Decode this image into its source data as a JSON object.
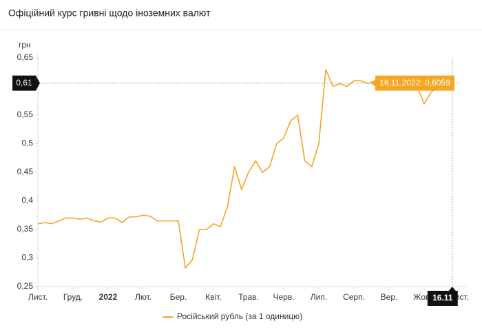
{
  "chart_data": {
    "type": "line",
    "title": "Офіційний курс гривні щодо іноземних валют",
    "y_label": "грн",
    "series": [
      {
        "name": "Російський рубль (за 1 одиницю)",
        "color": "#f5a623",
        "values": [
          0.36,
          0.362,
          0.36,
          0.365,
          0.37,
          0.37,
          0.368,
          0.37,
          0.365,
          0.363,
          0.37,
          0.37,
          0.362,
          0.372,
          0.372,
          0.375,
          0.373,
          0.365,
          0.365,
          0.365,
          0.365,
          0.283,
          0.297,
          0.35,
          0.35,
          0.36,
          0.355,
          0.39,
          0.46,
          0.42,
          0.45,
          0.47,
          0.45,
          0.46,
          0.5,
          0.51,
          0.54,
          0.55,
          0.47,
          0.46,
          0.5,
          0.63,
          0.6,
          0.605,
          0.6,
          0.61,
          0.61,
          0.605,
          0.61,
          0.61,
          0.6,
          0.6,
          0.61,
          0.61,
          0.6,
          0.57,
          0.59,
          0.6,
          0.6,
          0.6059
        ]
      }
    ],
    "xlim": [
      0,
      60
    ],
    "xticks": [
      {
        "value": 0,
        "label": "Лист."
      },
      {
        "value": 5,
        "label": "Груд."
      },
      {
        "value": 10,
        "label": "2022"
      },
      {
        "value": 15,
        "label": "Лют."
      },
      {
        "value": 20,
        "label": "Бер."
      },
      {
        "value": 25,
        "label": "Квіт."
      },
      {
        "value": 30,
        "label": "Трав."
      },
      {
        "value": 35,
        "label": "Черв."
      },
      {
        "value": 40,
        "label": "Лип."
      },
      {
        "value": 45,
        "label": "Серп."
      },
      {
        "value": 50,
        "label": "Вер."
      },
      {
        "value": 55,
        "label": "Жовт."
      },
      {
        "value": 60,
        "label": "Лист."
      }
    ],
    "ylim": [
      0.25,
      0.65
    ],
    "yticks": [
      {
        "value": 0.25,
        "label": "0,25"
      },
      {
        "value": 0.3,
        "label": "0,3"
      },
      {
        "value": 0.35,
        "label": "0,35"
      },
      {
        "value": 0.4,
        "label": "0,4"
      },
      {
        "value": 0.45,
        "label": "0,45"
      },
      {
        "value": 0.5,
        "label": "0,5"
      },
      {
        "value": 0.55,
        "label": "0,55"
      },
      {
        "value": 0.6,
        "label": "0,6"
      },
      {
        "value": 0.65,
        "label": "0,65"
      }
    ],
    "tooltip": {
      "index": 59,
      "value": 0.6059,
      "label": "16.11.2022: 0,6059",
      "x_label": "16.11",
      "y_label": "0,61"
    }
  }
}
